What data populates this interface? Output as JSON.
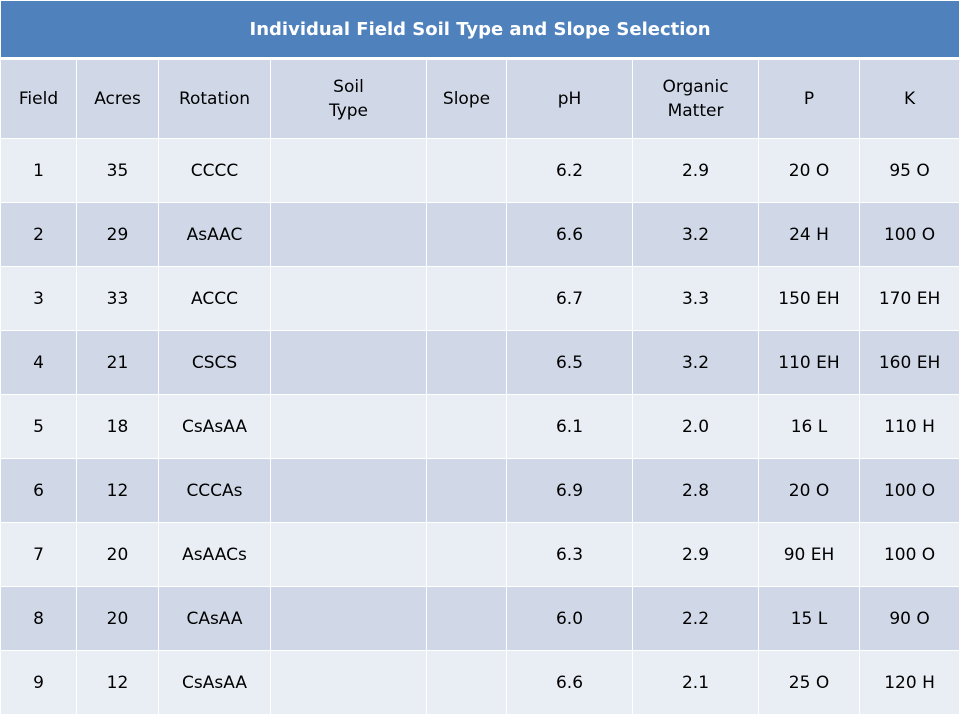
{
  "table": {
    "title": "Individual Field Soil Type and Slope Selection",
    "headers": [
      {
        "line1": "Field",
        "line2": ""
      },
      {
        "line1": "Acres",
        "line2": ""
      },
      {
        "line1": "Rotation",
        "line2": ""
      },
      {
        "line1": "Soil",
        "line2": "Type"
      },
      {
        "line1": "Slope",
        "line2": ""
      },
      {
        "line1": "pH",
        "line2": ""
      },
      {
        "line1": "Organic",
        "line2": "Matter"
      },
      {
        "line1": "P",
        "line2": ""
      },
      {
        "line1": "K",
        "line2": ""
      }
    ],
    "rows": [
      [
        "1",
        "35",
        "CCCC",
        "",
        "",
        "6.2",
        "2.9",
        "20 O",
        "95 O"
      ],
      [
        "2",
        "29",
        "AsAAC",
        "",
        "",
        "6.6",
        "3.2",
        "24 H",
        "100 O"
      ],
      [
        "3",
        "33",
        "ACCC",
        "",
        "",
        "6.7",
        "3.3",
        "150  EH",
        "170 EH"
      ],
      [
        "4",
        "21",
        "CSCS",
        "",
        "",
        "6.5",
        "3.2",
        "110 EH",
        "160 EH"
      ],
      [
        "5",
        "18",
        "CsAsAA",
        "",
        "",
        "6.1",
        "2.0",
        "16 L",
        "110 H"
      ],
      [
        "6",
        "12",
        "CCCAs",
        "",
        "",
        "6.9",
        "2.8",
        "20 O",
        "100 O"
      ],
      [
        "7",
        "20",
        "AsAACs",
        "",
        "",
        "6.3",
        "2.9",
        "90 EH",
        "100 O"
      ],
      [
        "8",
        "20",
        "CAsAA",
        "",
        "",
        "6.0",
        "2.2",
        "15 L",
        "90 O"
      ],
      [
        "9",
        "12",
        "CsAsAA",
        "",
        "",
        "6.6",
        "2.1",
        "25 O",
        "120 H"
      ]
    ]
  },
  "colors": {
    "title_bg": "#4f81bd",
    "header_bg": "#d0d8e8",
    "row_light": "#e9edf4",
    "row_dark": "#d0d8e8"
  }
}
